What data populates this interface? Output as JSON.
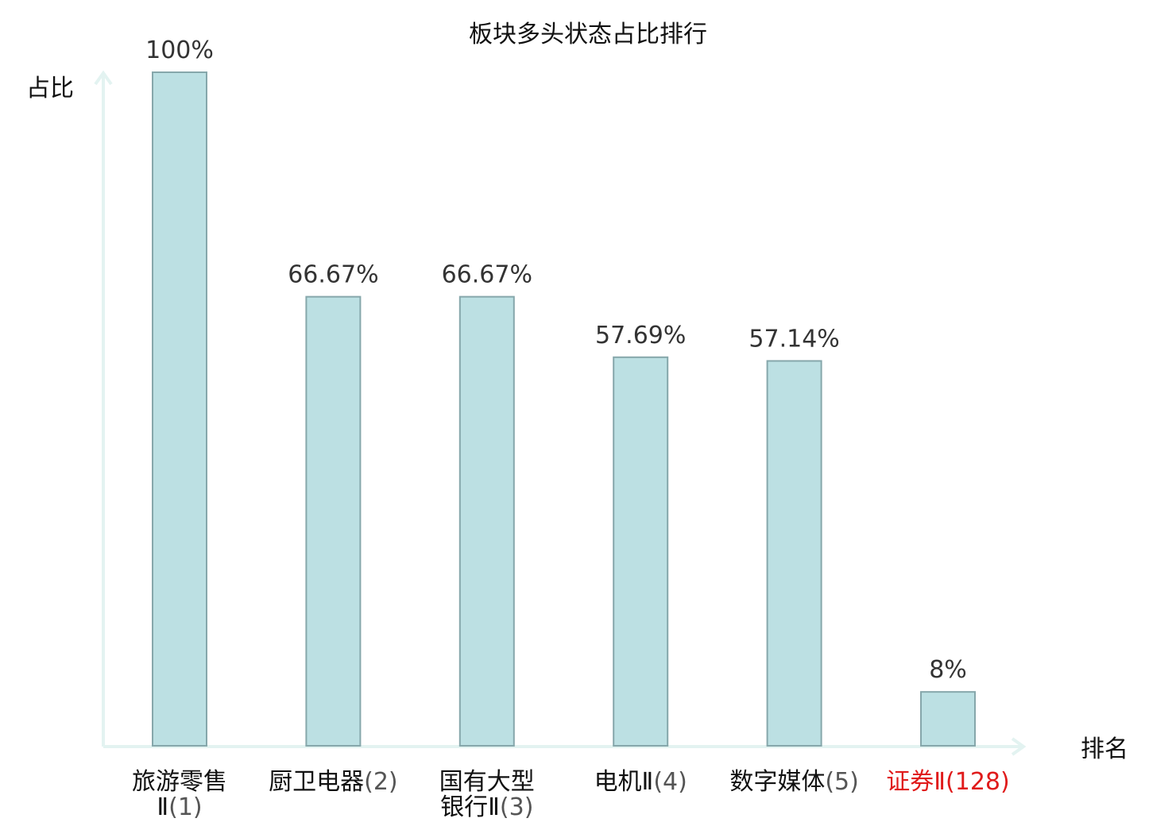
{
  "chart_data": {
    "type": "bar",
    "title": "板块多头状态占比排行",
    "xlabel": "排名",
    "ylabel": "占比",
    "ylim": [
      0,
      100
    ],
    "grid": false,
    "categories": [
      {
        "name_lines": [
          "旅游零售",
          "Ⅱ"
        ],
        "rank": "(1)",
        "highlight": false
      },
      {
        "name_lines": [
          "厨卫电器"
        ],
        "rank": "(2)",
        "highlight": false
      },
      {
        "name_lines": [
          "国有大型",
          "银行Ⅱ"
        ],
        "rank": "(3)",
        "highlight": false
      },
      {
        "name_lines": [
          "电机Ⅱ"
        ],
        "rank": "(4)",
        "highlight": false
      },
      {
        "name_lines": [
          "数字媒体"
        ],
        "rank": "(5)",
        "highlight": false
      },
      {
        "name_lines": [
          "证券Ⅱ"
        ],
        "rank": "(128)",
        "highlight": true
      }
    ],
    "values": [
      100,
      66.67,
      66.67,
      57.69,
      57.14,
      8
    ],
    "value_labels": [
      "100%",
      "66.67%",
      "66.67%",
      "57.69%",
      "57.14%",
      "8%"
    ],
    "colors": {
      "bar_fill": "#bce0e3",
      "bar_stroke": "#86a7ab",
      "axis": "#e3f3f1",
      "highlight_label": "#e01b1b"
    }
  }
}
